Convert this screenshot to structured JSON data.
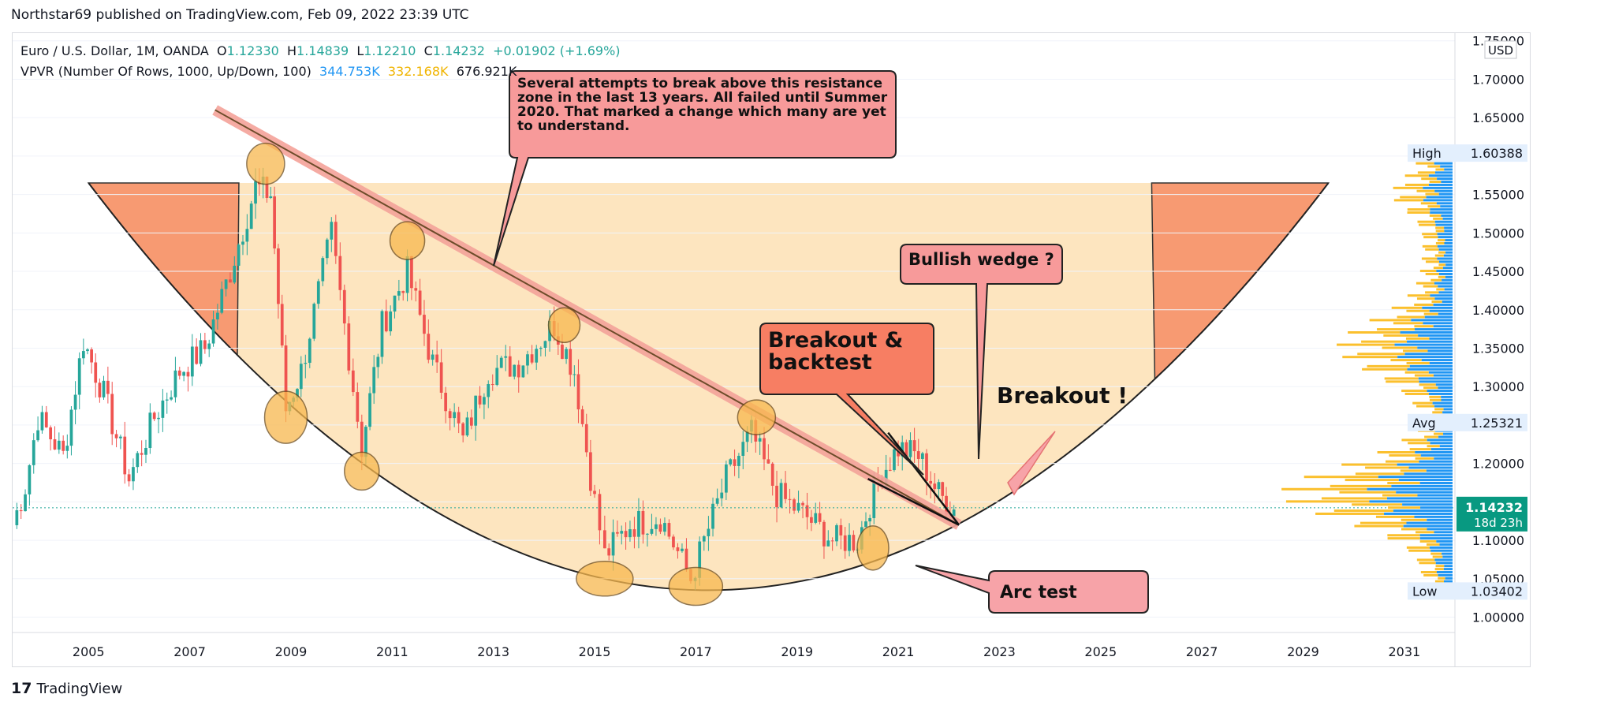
{
  "header": {
    "published": "Northstar69 published on TradingView.com, Feb 09, 2022 23:39 UTC"
  },
  "legend": {
    "symbol": "Euro / U.S. Dollar, 1M, OANDA",
    "o_label": "O",
    "o_value": "1.12330",
    "h_label": "H",
    "h_value": "1.14839",
    "l_label": "L",
    "l_value": "1.12210",
    "c_label": "C",
    "c_value": "1.14232",
    "change": "+0.01902 (+1.69%)",
    "vpvr_label": "VPVR (Number Of Rows, 1000, Up/Down, 100)",
    "vpvr_up": "344.753K",
    "vpvr_down": "332.168K",
    "vpvr_total": "676.921K"
  },
  "footer": {
    "logo": "17",
    "brand": "TradingView"
  },
  "colors": {
    "up": "#26a69a",
    "down": "#ef5350",
    "fill": "#fde0b4",
    "bowl_side": "#f79a72",
    "circle": "#f8b84e",
    "vp_up": "#2196f3",
    "vp_down": "#fbc02d"
  },
  "annotations": {
    "resistance": "Several attempts to break above this resistance zone in the last 13 years. All failed until Summer 2020. That marked a change which many are yet to understand.",
    "wedge": "Bullish wedge ?",
    "breakout_backtest": "Breakout & backtest",
    "breakout": "Breakout !",
    "arc_test": "Arc test"
  },
  "chart_data": {
    "type": "candlestick",
    "title": "Euro / U.S. Dollar, 1M, OANDA",
    "xlabel": "",
    "ylabel": "USD",
    "currency": "USD",
    "xlim": [
      2003.5,
      2032
    ],
    "ylim": [
      0.98,
      1.76
    ],
    "x_ticks": [
      "2005",
      "2007",
      "2009",
      "2011",
      "2013",
      "2015",
      "2017",
      "2019",
      "2021",
      "2023",
      "2025",
      "2027",
      "2029",
      "2031"
    ],
    "y_ticks": [
      "1.00000",
      "1.05000",
      "1.10000",
      "1.15000",
      "1.20000",
      "1.25000",
      "1.30000",
      "1.35000",
      "1.40000",
      "1.45000",
      "1.50000",
      "1.55000",
      "1.60000",
      "1.65000",
      "1.70000",
      "1.75000"
    ],
    "price_labels": [
      {
        "label": "High",
        "value": "1.60388"
      },
      {
        "label": "Avg",
        "value": "1.25321"
      },
      {
        "label": "",
        "value": "1.14232",
        "sub": "18d 23h"
      },
      {
        "label": "Low",
        "value": "1.03402"
      }
    ],
    "current_price": 1.14232,
    "approx_close_path": [
      [
        2003.5,
        1.12
      ],
      [
        2003.75,
        1.17
      ],
      [
        2004.0,
        1.26
      ],
      [
        2004.5,
        1.21
      ],
      [
        2004.9,
        1.36
      ],
      [
        2005.3,
        1.29
      ],
      [
        2005.8,
        1.18
      ],
      [
        2006.3,
        1.26
      ],
      [
        2006.8,
        1.32
      ],
      [
        2007.3,
        1.35
      ],
      [
        2007.8,
        1.45
      ],
      [
        2008.3,
        1.56
      ],
      [
        2008.6,
        1.55
      ],
      [
        2008.9,
        1.27
      ],
      [
        2009.2,
        1.32
      ],
      [
        2009.8,
        1.5
      ],
      [
        2010.4,
        1.22
      ],
      [
        2010.8,
        1.38
      ],
      [
        2011.3,
        1.45
      ],
      [
        2011.8,
        1.33
      ],
      [
        2012.4,
        1.23
      ],
      [
        2012.9,
        1.32
      ],
      [
        2013.5,
        1.33
      ],
      [
        2014.2,
        1.38
      ],
      [
        2014.6,
        1.32
      ],
      [
        2015.0,
        1.15
      ],
      [
        2015.2,
        1.08
      ],
      [
        2015.7,
        1.12
      ],
      [
        2016.3,
        1.13
      ],
      [
        2016.9,
        1.05
      ],
      [
        2017.6,
        1.18
      ],
      [
        2018.1,
        1.24
      ],
      [
        2018.6,
        1.16
      ],
      [
        2019.2,
        1.13
      ],
      [
        2019.7,
        1.1
      ],
      [
        2020.2,
        1.1
      ],
      [
        2020.6,
        1.18
      ],
      [
        2021.0,
        1.22
      ],
      [
        2021.4,
        1.21
      ],
      [
        2021.8,
        1.16
      ],
      [
        2022.1,
        1.14
      ]
    ],
    "volume_profile_note": "VPVR up/down volume by price; up 344.753K, down 332.168K, total 676.921K",
    "markers": {
      "resistance_line": [
        [
          2007.5,
          1.66
        ],
        [
          2022.2,
          1.12
        ]
      ],
      "arc_low": 1.035,
      "arc_left_x": 2005.0,
      "arc_right_x": 2029.5,
      "arc_top": 1.565
    }
  }
}
